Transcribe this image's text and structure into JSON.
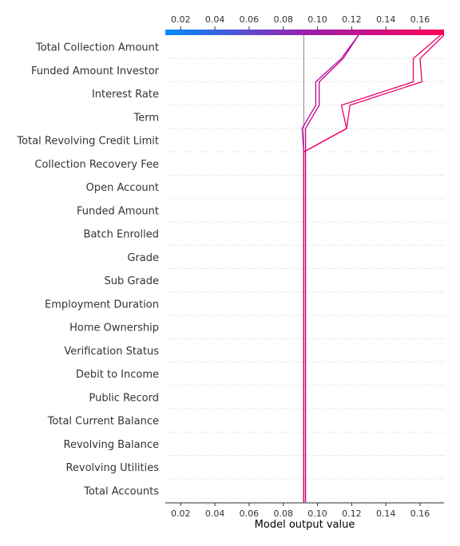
{
  "chart_data": {
    "type": "line",
    "title": "",
    "xlabel": "Model output value",
    "ylabel": "",
    "xlim": [
      0.011,
      0.174
    ],
    "x_ticks": [
      0.02,
      0.04,
      0.06,
      0.08,
      0.1,
      0.12,
      0.14,
      0.16
    ],
    "x_tick_labels": [
      "0.02",
      "0.04",
      "0.06",
      "0.08",
      "0.10",
      "0.12",
      "0.14",
      "0.16"
    ],
    "base_value": 0.092,
    "grid": "horizontal dotted",
    "colorbar": {
      "position": "top",
      "low_color": "#008bfb",
      "mid_color": "#9b1fb0",
      "high_color": "#ff0052"
    },
    "features": [
      "Total Collection Amount",
      "Funded Amount Investor",
      "Interest Rate",
      "Term",
      "Total Revolving Credit Limit",
      "Collection Recovery Fee",
      "Open Account",
      "Funded Amount",
      "Batch Enrolled",
      "Grade",
      "Sub Grade",
      "Employment Duration",
      "Home Ownership",
      "Verification Status",
      "Debit to Income",
      "Public Record",
      "Total Current Balance",
      "Revolving Balance",
      "Revolving Utilities",
      "Total Accounts"
    ],
    "series": [
      {
        "color": "#c8008f",
        "values": [
          0.124,
          0.115,
          0.101,
          0.101,
          0.093,
          0.093,
          0.093,
          0.093,
          0.093,
          0.093,
          0.093,
          0.093,
          0.093,
          0.093,
          0.093,
          0.093,
          0.093,
          0.093,
          0.093,
          0.093,
          0.093
        ]
      },
      {
        "color": "#b5009f",
        "values": [
          0.124,
          0.114,
          0.099,
          0.099,
          0.091,
          0.092,
          0.092,
          0.092,
          0.092,
          0.092,
          0.092,
          0.092,
          0.092,
          0.092,
          0.092,
          0.092,
          0.092,
          0.092,
          0.092,
          0.092,
          0.092
        ]
      },
      {
        "color": "#e8006c",
        "values": [
          0.174,
          0.16,
          0.161,
          0.119,
          0.117,
          0.092,
          0.092,
          0.092,
          0.092,
          0.092,
          0.092,
          0.092,
          0.092,
          0.092,
          0.092,
          0.092,
          0.092,
          0.092,
          0.092,
          0.092,
          0.092
        ]
      },
      {
        "color": "#ee0066",
        "values": [
          0.172,
          0.156,
          0.156,
          0.114,
          0.117,
          0.092,
          0.092,
          0.092,
          0.092,
          0.092,
          0.092,
          0.092,
          0.092,
          0.092,
          0.092,
          0.092,
          0.092,
          0.092,
          0.092,
          0.092,
          0.092
        ]
      }
    ]
  }
}
